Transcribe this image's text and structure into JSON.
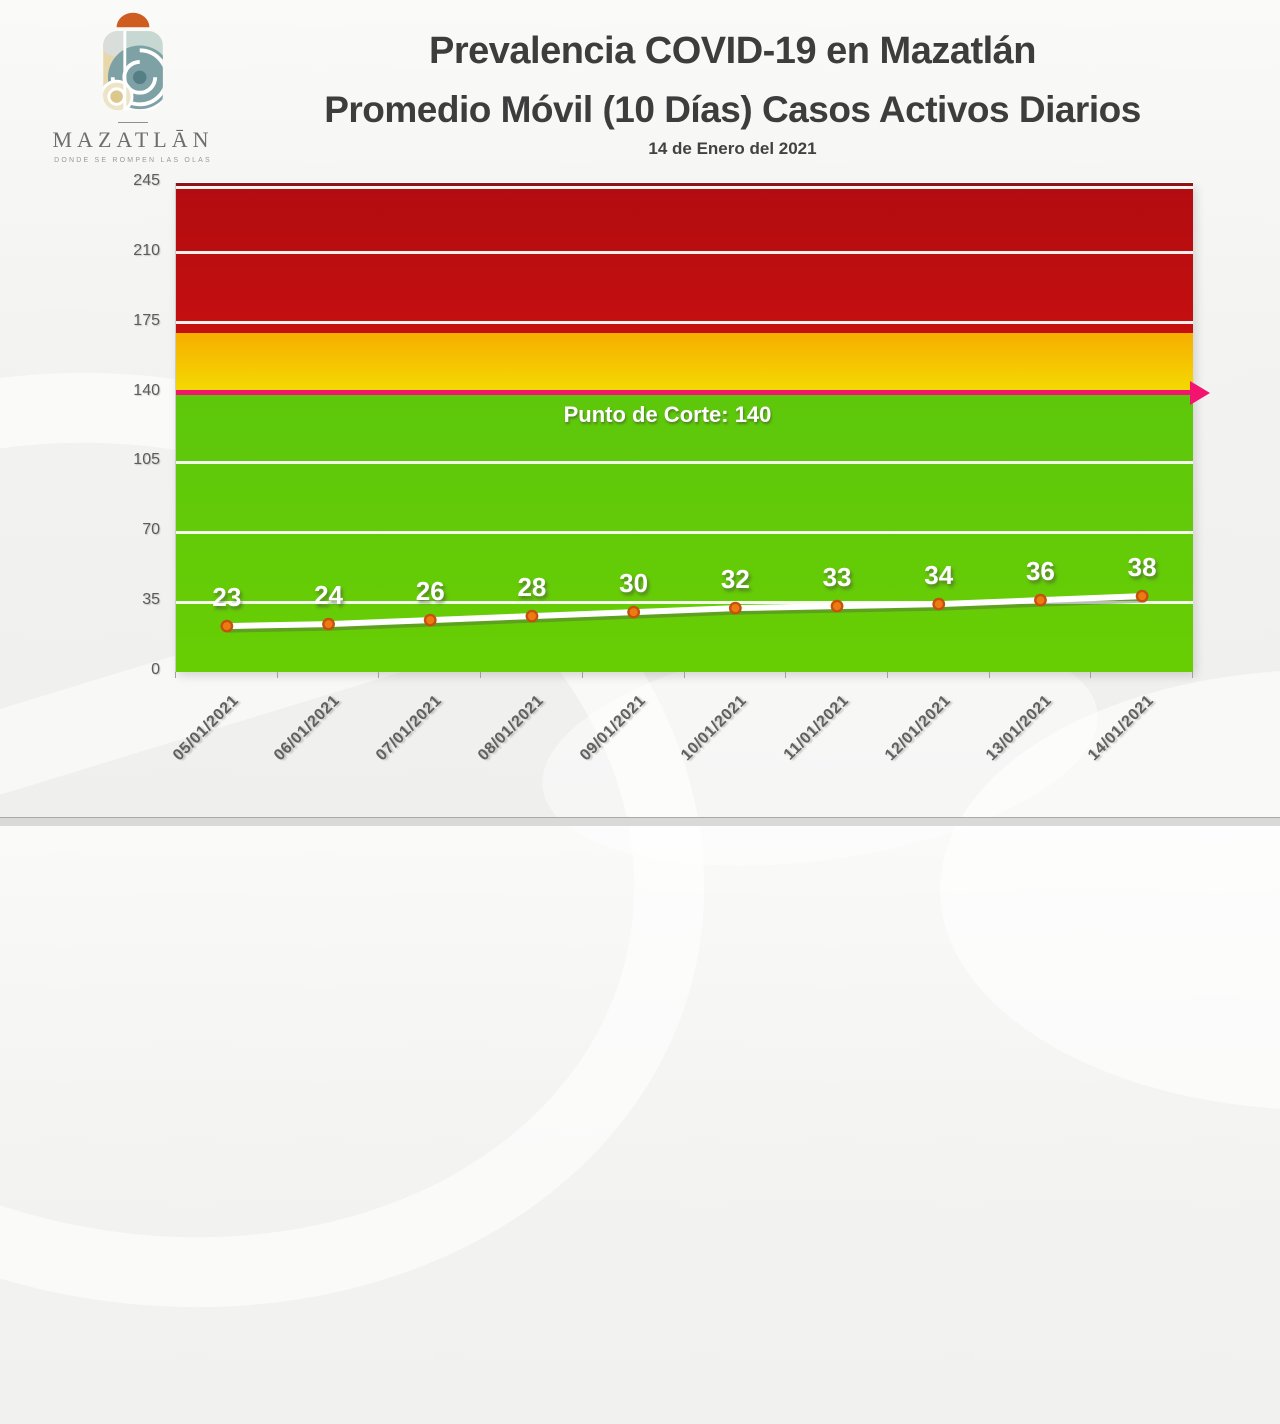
{
  "logo": {
    "name": "MAZATLĀN",
    "tagline": "DONDE SE ROMPEN LAS OLAS"
  },
  "header": {
    "title_line1": "Prevalencia COVID-19 en Mazatlán",
    "title_line2": "Promedio Móvil (10 Días) Casos Activos Diarios",
    "date": "14 de Enero del 2021"
  },
  "chart_data": {
    "type": "line",
    "title": "Promedio Móvil (10 Días) Casos Activos Diarios",
    "categories": [
      "05/01/2021",
      "06/01/2021",
      "07/01/2021",
      "08/01/2021",
      "09/01/2021",
      "10/01/2021",
      "11/01/2021",
      "12/01/2021",
      "13/01/2021",
      "14/01/2021"
    ],
    "series": [
      {
        "name": "Promedio Móvil (10 Días) Casos Activos Diarios",
        "values": [
          23,
          24,
          26,
          28,
          30,
          32,
          33,
          34,
          36,
          38
        ]
      }
    ],
    "ylim": [
      0,
      245
    ],
    "yticks": [
      0,
      35,
      70,
      105,
      140,
      175,
      210,
      245
    ],
    "grid": true,
    "legend": "none",
    "bands": [
      {
        "name": "green-zone",
        "from": 0,
        "to": 140,
        "color_top": "#5DC70B",
        "color_bottom": "#68CE04"
      },
      {
        "name": "yellow-zone",
        "from": 140,
        "to": 170,
        "color_top": "#F6AE00",
        "color_bottom": "#F4DB02"
      },
      {
        "name": "red-zone",
        "from": 170,
        "to": 245,
        "color_top": "#B20C10",
        "color_bottom": "#C50F10"
      }
    ],
    "cutoff": {
      "label": "Punto de Corte: 140",
      "value": 140,
      "color": "#F2146E"
    },
    "line_color": "#FFFFFF",
    "marker_color": "#EC7C12",
    "marker_border": "#C6500E"
  }
}
